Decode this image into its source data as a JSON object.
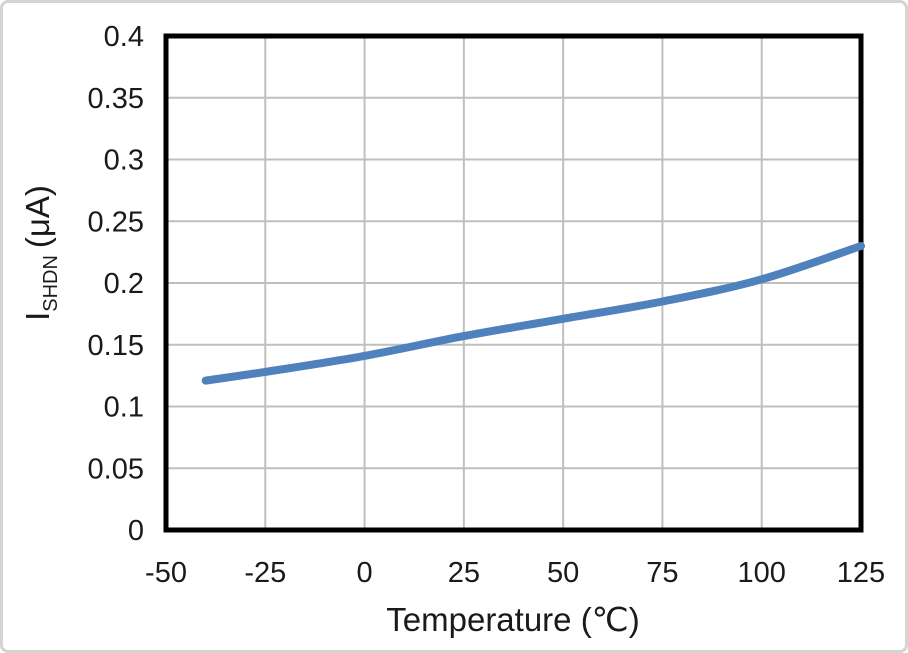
{
  "chart_data": {
    "type": "line",
    "title": "",
    "xlabel": "Temperature (℃)",
    "ylabel_main": "I",
    "ylabel_sub": "SHDN",
    "ylabel_unit": "(μA)",
    "xlim": [
      -50,
      125
    ],
    "ylim": [
      0,
      0.4
    ],
    "xticks": [
      -50,
      -25,
      0,
      25,
      50,
      75,
      100,
      125
    ],
    "xtick_labels": [
      "-50",
      "-25",
      "0",
      "25",
      "50",
      "75",
      "100",
      "125"
    ],
    "yticks": [
      0,
      0.05,
      0.1,
      0.15,
      0.2,
      0.25,
      0.3,
      0.35,
      0.4
    ],
    "ytick_labels": [
      "0",
      "0.05",
      "0.1",
      "0.15",
      "0.2",
      "0.25",
      "0.3",
      "0.35",
      "0.4"
    ],
    "grid": true,
    "legend": "none",
    "series": [
      {
        "name": "ISHDN",
        "x": [
          -40,
          -25,
          0,
          25,
          50,
          75,
          100,
          125
        ],
        "y": [
          0.121,
          0.128,
          0.141,
          0.157,
          0.171,
          0.185,
          0.203,
          0.23
        ],
        "smooth": true
      }
    ],
    "colors": {
      "line": "#4F81BD",
      "grid": "#BFBFBF",
      "frame": "#000000",
      "background": "#FFFFFF",
      "outer_border": "#D4D4D4"
    },
    "line_width": 8
  }
}
